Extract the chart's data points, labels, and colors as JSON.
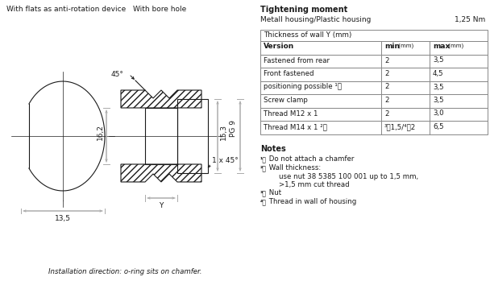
{
  "title_left1": "With flats as anti-rotation device",
  "title_left2": "With bore hole",
  "tightening_title": "Tightening moment",
  "tightening_sub": "Metall housing/Plastic housing",
  "tightening_val": "1,25 Nm",
  "table_header": "Thickness of wall Y (mm)",
  "table_rows": [
    [
      "Fastened from rear",
      "2",
      "3,5"
    ],
    [
      "Front fastened",
      "2",
      "4,5"
    ],
    [
      "positioning possible ¹⧠",
      "2",
      "3,5"
    ],
    [
      "Screw clamp",
      "2",
      "3,5"
    ],
    [
      "Thread M12 x 1",
      "2",
      "3,0"
    ],
    [
      "Thread M14 x 1 ²⧠",
      "³⧠1,5/⁴⧠2",
      "6,5"
    ]
  ],
  "notes_title": "Notes",
  "notes": [
    [
      "¹⧠",
      " Do not attach a chamfer"
    ],
    [
      "²⧠",
      " Wall thickness:"
    ],
    [
      "",
      "    use nut 38 5385 100 001 up to 1,5 mm,"
    ],
    [
      "",
      "    >1,5 mm cut thread"
    ],
    [
      "³⧠",
      " Nut"
    ],
    [
      "⁴⧠",
      " Thread in wall of housing"
    ]
  ],
  "dim_162": "16,2",
  "dim_153": "15,3",
  "dim_pg9": "PG 9",
  "dim_45": "45°",
  "dim_1x45": "1 x 45°",
  "dim_135": "13,5",
  "dim_y": "Y",
  "install_note": "Installation direction: o-ring sits on chamfer.",
  "bg_color": "#ffffff",
  "line_color": "#1a1a1a",
  "dim_color": "#aaaaaa",
  "table_border_color": "#888888"
}
